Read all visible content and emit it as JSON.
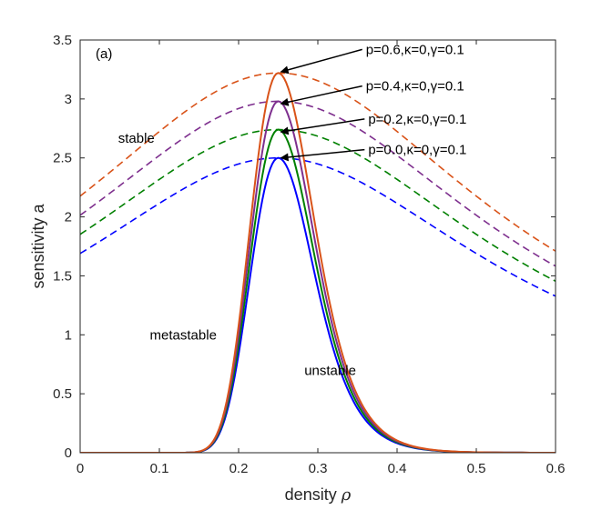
{
  "chart_data": {
    "type": "line",
    "title": "",
    "panel_label": "(a)",
    "xlabel": "density",
    "xlabel_symbol": "ρ",
    "ylabel": "sensitivity a",
    "xlim": [
      0,
      0.6
    ],
    "ylim": [
      0,
      3.5
    ],
    "xticks": [
      0,
      0.1,
      0.2,
      0.3,
      0.4,
      0.5,
      0.6
    ],
    "yticks": [
      0,
      0.5,
      1,
      1.5,
      2,
      2.5,
      3,
      3.5
    ],
    "grid": false,
    "region_labels": [
      {
        "text": "stable",
        "x": 0.048,
        "y": 2.63
      },
      {
        "text": "metastable",
        "x": 0.088,
        "y": 0.96
      },
      {
        "text": "unstable",
        "x": 0.283,
        "y": 0.66
      }
    ],
    "series": [
      {
        "name": "p=0.0",
        "p": 0.0,
        "annotation": "p=0.0,κ=0,γ=0.1",
        "color": "#0000ff",
        "peak": [
          0.25,
          2.5
        ],
        "label_pos": [
          0.359,
          2.57
        ]
      },
      {
        "name": "p=0.2",
        "p": 0.2,
        "annotation": "p=0.2,κ=0,γ=0.1",
        "color": "#008000",
        "peak": [
          0.25,
          2.72
        ],
        "label_pos": [
          0.359,
          2.83
        ]
      },
      {
        "name": "p=0.4",
        "p": 0.4,
        "annotation": "p=0.4,κ=0,γ=0.1",
        "color": "#7e2f8e",
        "peak": [
          0.25,
          2.96
        ],
        "label_pos": [
          0.356,
          3.11
        ]
      },
      {
        "name": "p=0.6",
        "p": 0.6,
        "annotation": "p=0.6,κ=0,γ=0.1",
        "color": "#d95319",
        "peak": [
          0.25,
          3.23
        ],
        "label_pos": [
          0.356,
          3.42
        ]
      }
    ]
  }
}
